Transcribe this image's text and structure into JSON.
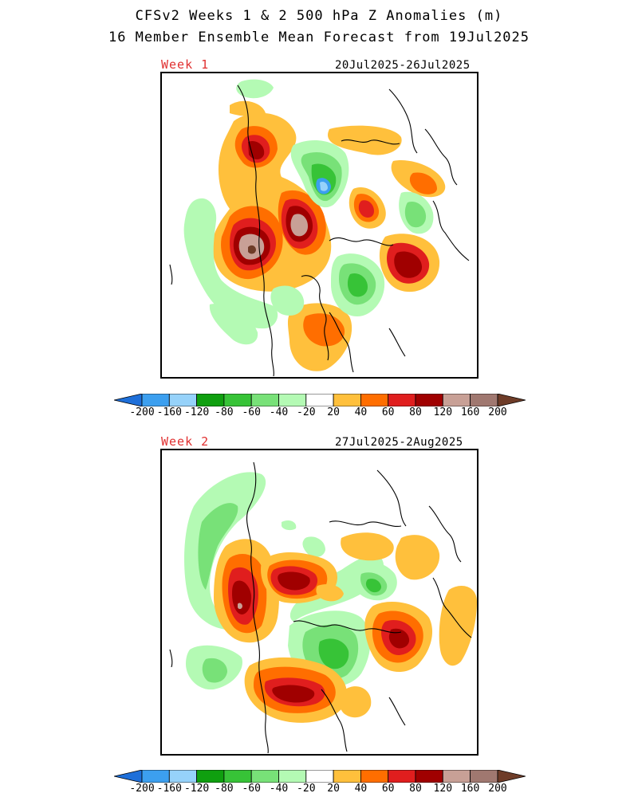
{
  "header": {
    "title_line1": "CFSv2 Weeks 1 & 2 500 hPa Z Anomalies (m)",
    "title_line2": "16 Member Ensemble Mean Forecast from 19Jul2025"
  },
  "panels": [
    {
      "label": "Week 1",
      "dates": "20Jul2025-26Jul2025"
    },
    {
      "label": "Week 2",
      "dates": "27Jul2025-2Aug2025"
    }
  ],
  "colorbar": {
    "ticks": [
      "-200",
      "-160",
      "-120",
      "-80",
      "-60",
      "-40",
      "-20",
      "20",
      "40",
      "60",
      "80",
      "120",
      "160",
      "200"
    ],
    "colors": [
      "#1e6fd9",
      "#3c9fef",
      "#96d2fa",
      "#0f9f0f",
      "#37c337",
      "#78e178",
      "#b4fab4",
      "#ffffff",
      "#ffc03c",
      "#ff6e00",
      "#e01e1e",
      "#a00000",
      "#c8a096",
      "#a07870",
      "#6e3c28"
    ]
  },
  "colors": {
    "pos20": "#ffc03c",
    "pos40": "#ff6e00",
    "pos60": "#e01e1e",
    "pos80": "#a00000",
    "pos120": "#c8a096",
    "pos160": "#a07870",
    "pos200": "#6e3c28",
    "neg20": "#b4fab4",
    "neg40": "#78e178",
    "neg60": "#37c337",
    "neg80": "#0f9f0f",
    "neg120": "#96d2fa",
    "neg160": "#3c9fef"
  }
}
